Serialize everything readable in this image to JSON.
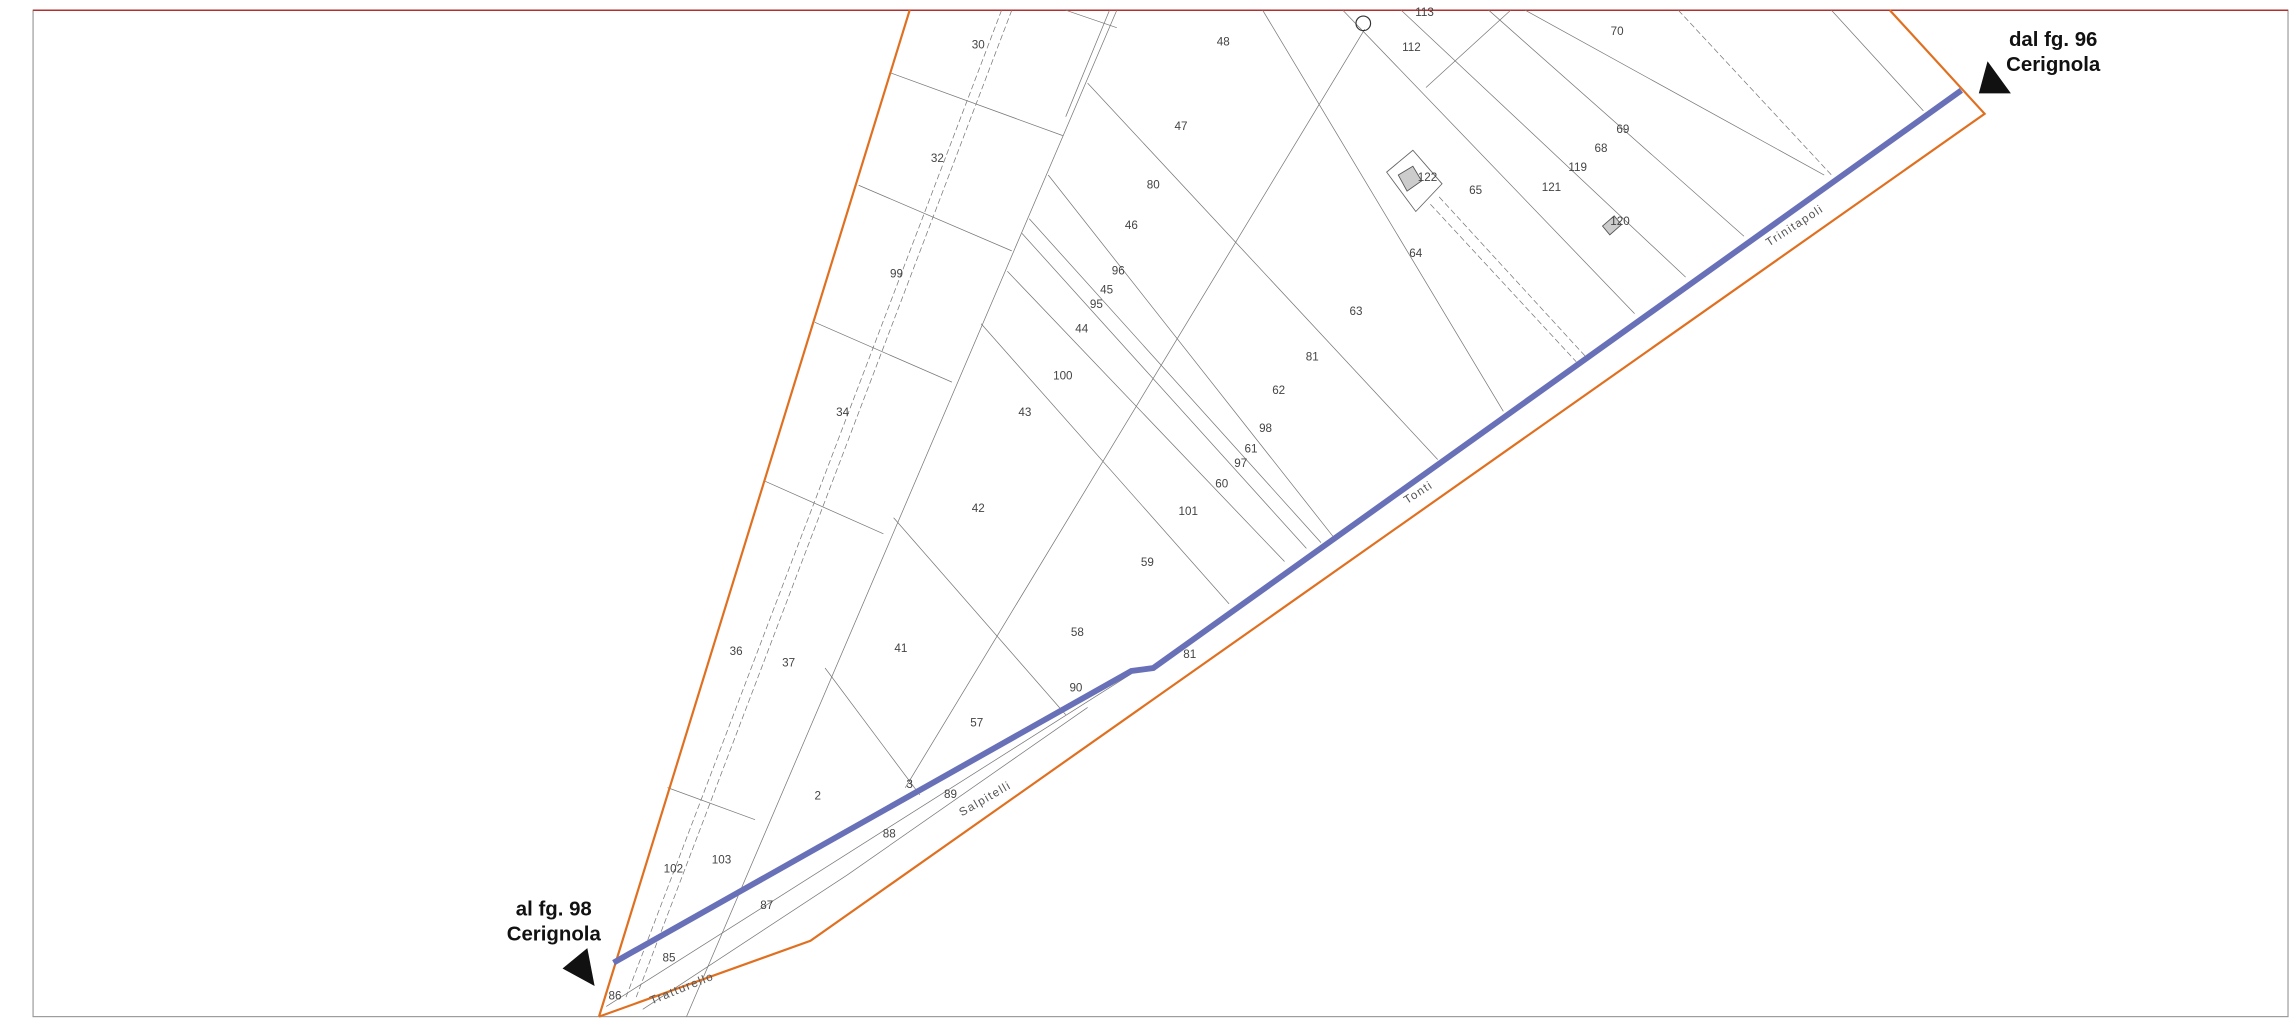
{
  "parcels": [
    "30",
    "48",
    "113",
    "112",
    "70",
    "32",
    "47",
    "80",
    "122",
    "65",
    "69",
    "68",
    "119",
    "121",
    "120",
    "46",
    "99",
    "96",
    "45",
    "95",
    "64",
    "63",
    "44",
    "100",
    "81",
    "34",
    "43",
    "62",
    "98",
    "61",
    "97",
    "60",
    "42",
    "101",
    "59",
    "58",
    "36",
    "37",
    "41",
    "81",
    "90",
    "57",
    "3",
    "89",
    "2",
    "88",
    "102",
    "103",
    "87",
    "85",
    "86"
  ],
  "roads": [
    "Trinitapoli",
    "Tonti",
    "Salpitelli",
    "Tratturello"
  ],
  "callouts": [
    {
      "line1": "dal fg. 96",
      "line2": "Cerignola"
    },
    {
      "line1": "al fg. 98",
      "line2": "Cerignola"
    }
  ]
}
